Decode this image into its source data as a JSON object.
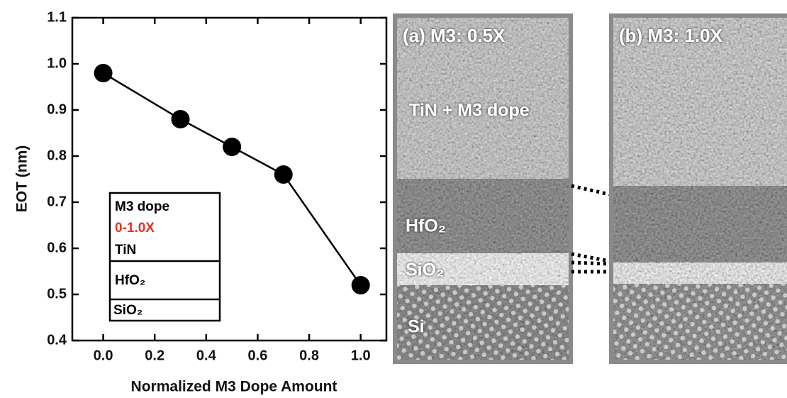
{
  "chart_data": {
    "type": "line",
    "xlabel": "Normalized M3 Dope Amount",
    "ylabel": "EOT (nm)",
    "x": [
      0,
      0.3,
      0.5,
      0.7,
      1.0
    ],
    "series": [
      {
        "color": "#000000",
        "values": [
          0.98,
          0.88,
          0.82,
          0.76,
          0.52
        ]
      }
    ],
    "xlim": [
      -0.12,
      1.1
    ],
    "ylim": [
      0.4,
      1.1
    ],
    "xticks": [
      {
        "value": 0,
        "label": "0.0"
      },
      0.2,
      0.4,
      0.6,
      0.8,
      {
        "value": 1,
        "label": "1.0"
      }
    ],
    "yticks": [
      0.4,
      0.5,
      0.6,
      0.7,
      0.8,
      0.9,
      {
        "value": 1,
        "label": "1.0"
      },
      1.1
    ],
    "inset": {
      "lines": [
        "M3 dope",
        "0-1.0X",
        "TiN",
        "HfO₂",
        "SiO₂"
      ]
    }
  },
  "images": [
    {
      "label": "(a) M3: 0.5X",
      "layers": [
        "TiN + M3 dope",
        "HfO₂",
        "SiO₂",
        "Si"
      ]
    },
    {
      "label": "(b) M3: 1.0X"
    }
  ]
}
